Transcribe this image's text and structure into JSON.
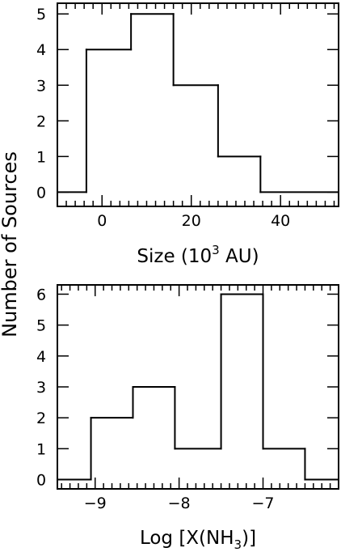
{
  "ylabel": "Number of Sources",
  "chart_data": [
    {
      "type": "histogram",
      "xlabel": "Size (10^3 AU)",
      "xlabel_parts": {
        "pre": "Size  (10",
        "sup": "3",
        "post": " AU)"
      },
      "xlim": [
        -10,
        53
      ],
      "ylim": [
        -0.4,
        5.3
      ],
      "x_major_ticks": [
        0,
        20,
        40
      ],
      "x_major_tick_labels": [
        "0",
        "20",
        "40"
      ],
      "x_minor_step": 2,
      "y_ticks": [
        0,
        1,
        2,
        3,
        4,
        5
      ],
      "y_tick_labels": [
        "0",
        "1",
        "2",
        "3",
        "4",
        "5"
      ],
      "bin_edges": [
        -10,
        -3.5,
        6.5,
        16,
        26,
        35.5,
        53
      ],
      "counts": [
        0,
        4,
        5,
        3,
        1,
        0
      ]
    },
    {
      "type": "histogram",
      "xlabel": "Log [X(NH3)]",
      "xlabel_parts": {
        "pre": "Log  [X(NH",
        "sub": "3",
        "post": ")]"
      },
      "xlim": [
        -9.45,
        -6.1
      ],
      "ylim": [
        -0.3,
        6.3
      ],
      "x_major_ticks": [
        -9,
        -8,
        -7
      ],
      "x_major_tick_labels": [
        "−9",
        "−8",
        "−7"
      ],
      "x_minor_step": 0.1,
      "y_ticks": [
        0,
        1,
        2,
        3,
        4,
        5,
        6
      ],
      "y_tick_labels": [
        "0",
        "1",
        "2",
        "3",
        "4",
        "5",
        "6"
      ],
      "bin_edges": [
        -9.45,
        -9.05,
        -8.55,
        -8.05,
        -7.5,
        -7.0,
        -6.5,
        -6.1
      ],
      "counts": [
        0,
        2,
        3,
        1,
        6,
        1,
        0
      ]
    }
  ]
}
